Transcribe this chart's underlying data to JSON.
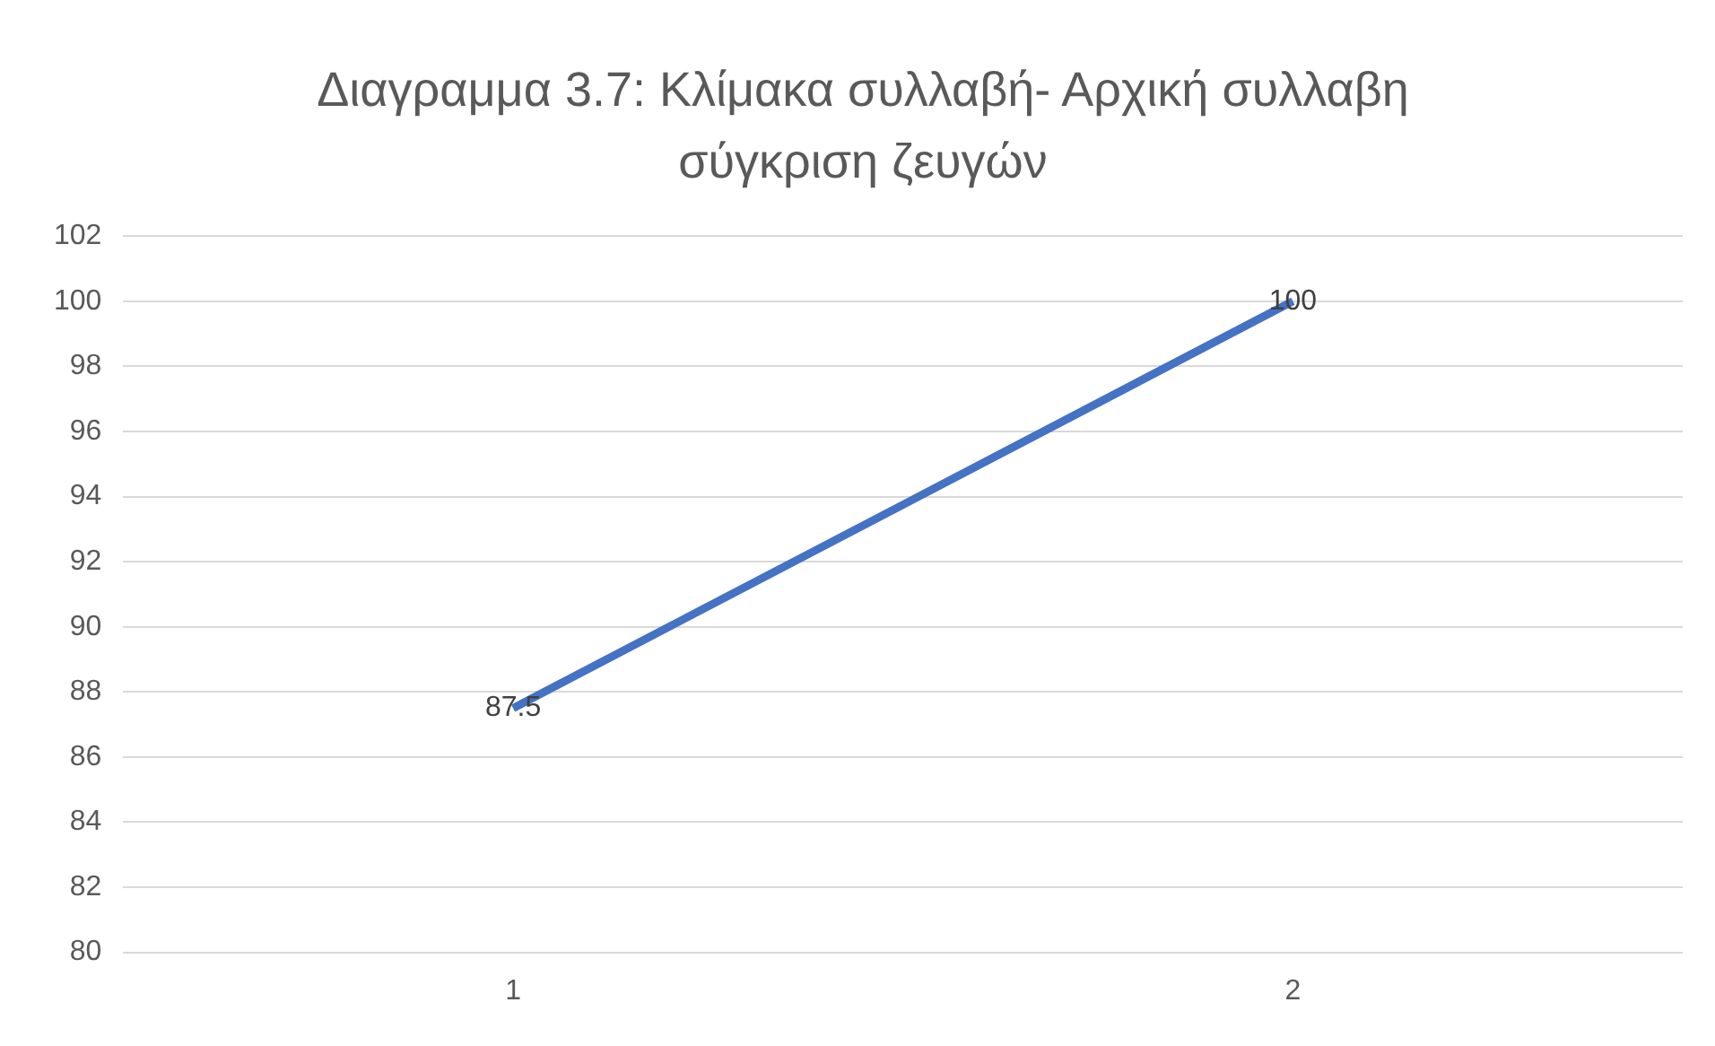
{
  "chart_data": {
    "type": "line",
    "title": "Διαγραμμα 3.7: Κλίμακα συλλαβή- Αρχική συλλαβη σύγκριση ζευγών",
    "categories": [
      "1",
      "2"
    ],
    "series": [
      {
        "color": "#4472c4",
        "values": [
          87.5,
          100
        ]
      }
    ],
    "ylim": [
      80,
      102
    ],
    "yticks": [
      80,
      82,
      84,
      86,
      88,
      90,
      92,
      94,
      96,
      98,
      100,
      102
    ],
    "grid": "y",
    "legend": false,
    "marker": "none",
    "data_labels": true
  }
}
